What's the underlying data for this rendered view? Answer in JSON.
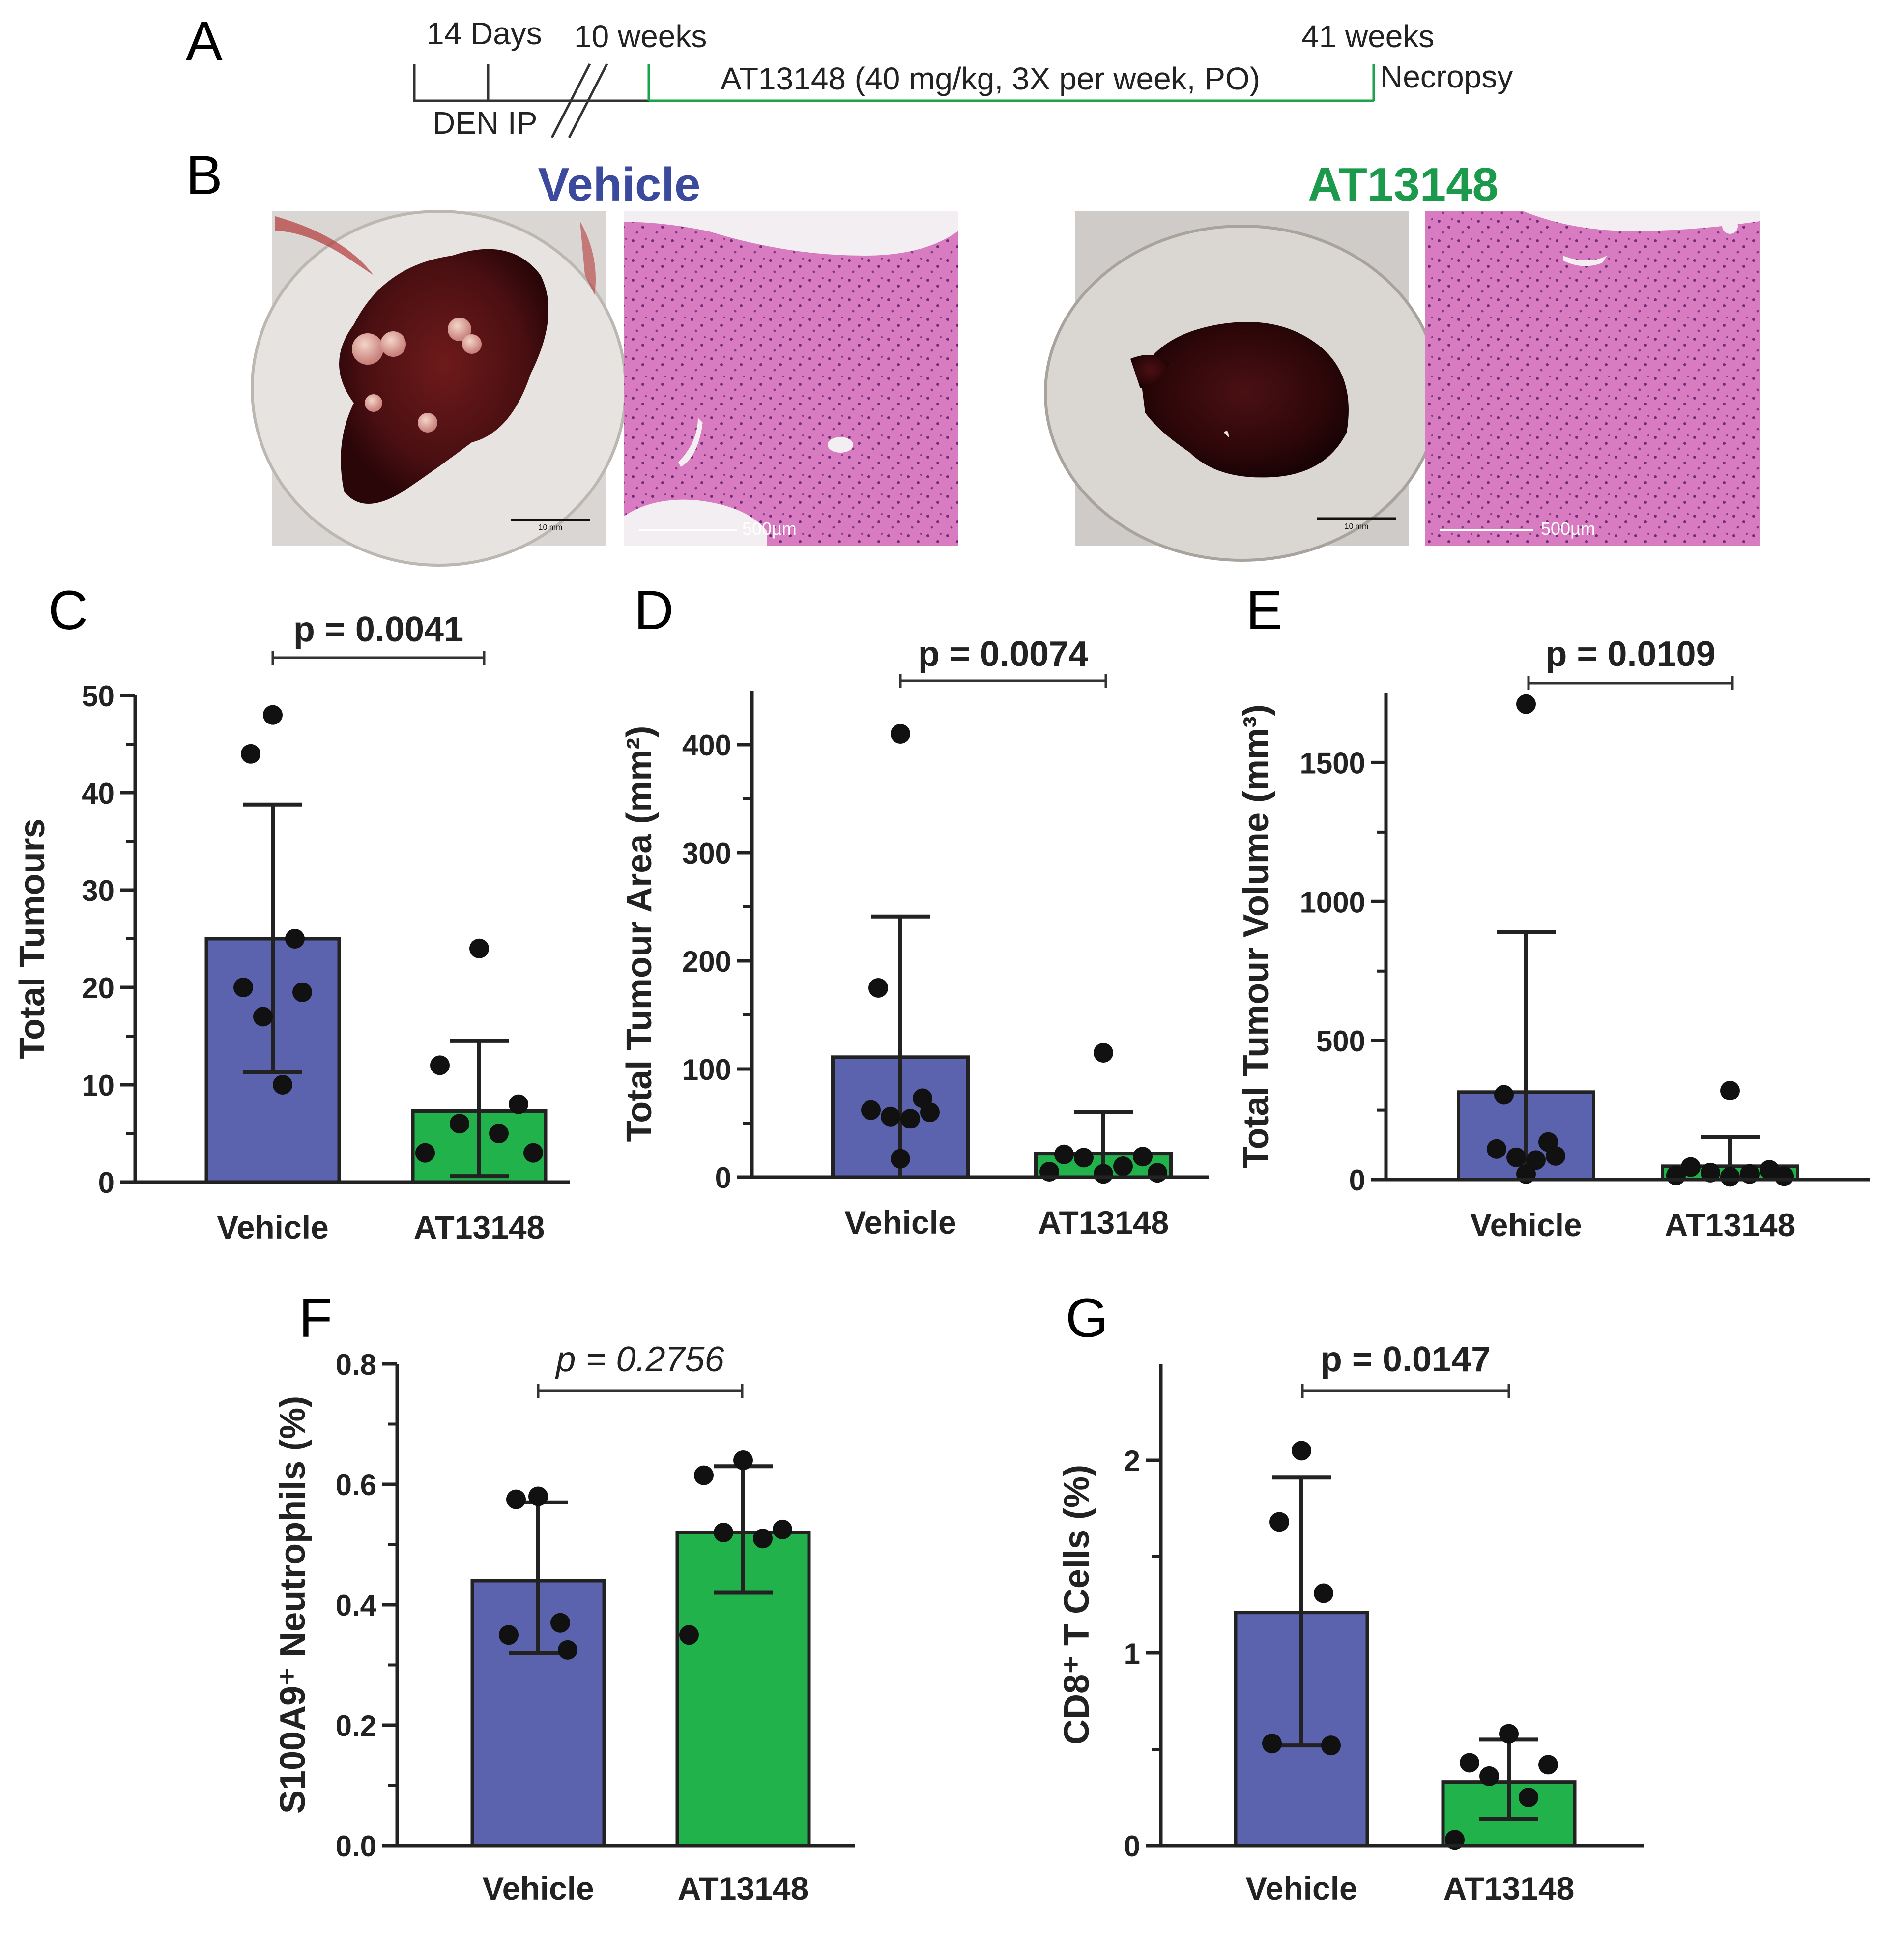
{
  "panel_letters": {
    "a": "A",
    "b": "B",
    "c": "C",
    "d": "D",
    "e": "E",
    "f": "F",
    "g": "G"
  },
  "timeline": {
    "label_14days": "14 Days",
    "label_10weeks": "10 weeks",
    "label_41weeks": "41 weeks",
    "label_den": "DEN IP",
    "label_treatment": "AT13148 (40 mg/kg, 3X per week, PO)",
    "label_necropsy": "Necropsy"
  },
  "images": {
    "vehicle_title": "Vehicle",
    "at_title": "AT13148",
    "scale_10mm": "10 mm",
    "scale_500um": "500µm"
  },
  "colors": {
    "vehicle": "#5b63ae",
    "at13148": "#22b24c",
    "vehicle_title": "#3b4a9c",
    "at_title": "#1a9a4a",
    "timeline_green": "#1aa34a"
  },
  "chart_data": [
    {
      "id": "C",
      "type": "bar",
      "title": "",
      "categories": [
        "Vehicle",
        "AT13148"
      ],
      "ylabel": "Total Tumours",
      "ylim": [
        0,
        50
      ],
      "yticks": [
        0,
        10,
        20,
        30,
        40,
        50
      ],
      "values": [
        25,
        7.3
      ],
      "error_upper": [
        38.8,
        14.5
      ],
      "error_lower": [
        11.3,
        0.6
      ],
      "points": [
        [
          48,
          44,
          25,
          20,
          19.5,
          17,
          10
        ],
        [
          24,
          12,
          8,
          6,
          5,
          3,
          3
        ]
      ],
      "pvalue": "p = 0.0041",
      "p_italic": false
    },
    {
      "id": "D",
      "type": "bar",
      "title": "",
      "categories": [
        "Vehicle",
        "AT13148"
      ],
      "ylabel": "Total Tumour Area (mm²)",
      "ylim": [
        0,
        450
      ],
      "yticks": [
        0,
        100,
        200,
        300,
        400
      ],
      "values": [
        111,
        22
      ],
      "error_upper": [
        241,
        60
      ],
      "error_lower": [
        0,
        0
      ],
      "points": [
        [
          410,
          175,
          73,
          62,
          60,
          56,
          54,
          17
        ],
        [
          115,
          21,
          19,
          18,
          10,
          5,
          4,
          3
        ]
      ],
      "pvalue": "p = 0.0074",
      "p_italic": false
    },
    {
      "id": "E",
      "type": "bar",
      "title": "",
      "categories": [
        "Vehicle",
        "AT13148"
      ],
      "ylabel": "Total Tumour Volume (mm³)",
      "ylim": [
        0,
        1750
      ],
      "yticks": [
        0,
        500,
        1000,
        1500
      ],
      "values": [
        315,
        48
      ],
      "error_upper": [
        890,
        152
      ],
      "error_lower": [
        0,
        0
      ],
      "points": [
        [
          1710,
          305,
          135,
          110,
          85,
          80,
          70,
          20
        ],
        [
          320,
          45,
          35,
          25,
          20,
          15,
          12,
          10
        ]
      ],
      "pvalue": "p = 0.0109",
      "p_italic": false
    },
    {
      "id": "F",
      "type": "bar",
      "title": "",
      "categories": [
        "Vehicle",
        "AT13148"
      ],
      "ylabel": "S100A9⁺ Neutrophils (%)",
      "ylim": [
        0,
        0.8
      ],
      "yticks": [
        0.0,
        0.2,
        0.4,
        0.6,
        0.8
      ],
      "tick_decimals": 1,
      "values": [
        0.44,
        0.52
      ],
      "error_upper": [
        0.57,
        0.63
      ],
      "error_lower": [
        0.32,
        0.42
      ],
      "points": [
        [
          0.58,
          0.575,
          0.37,
          0.35,
          0.325
        ],
        [
          0.64,
          0.615,
          0.525,
          0.52,
          0.51,
          0.35
        ]
      ],
      "pvalue": "p = 0.2756",
      "p_italic": true
    },
    {
      "id": "G",
      "type": "bar",
      "title": "",
      "categories": [
        "Vehicle",
        "AT13148"
      ],
      "ylabel": "CD8⁺ T Cells (%)",
      "ylim": [
        0,
        2.5
      ],
      "yticks": [
        0,
        1,
        2
      ],
      "values": [
        1.21,
        0.33
      ],
      "error_upper": [
        1.91,
        0.55
      ],
      "error_lower": [
        0.52,
        0.14
      ],
      "points": [
        [
          2.05,
          1.68,
          1.31,
          0.53,
          0.52
        ],
        [
          0.58,
          0.43,
          0.42,
          0.36,
          0.25,
          0.03
        ]
      ],
      "pvalue": "p = 0.0147",
      "p_italic": false
    }
  ]
}
